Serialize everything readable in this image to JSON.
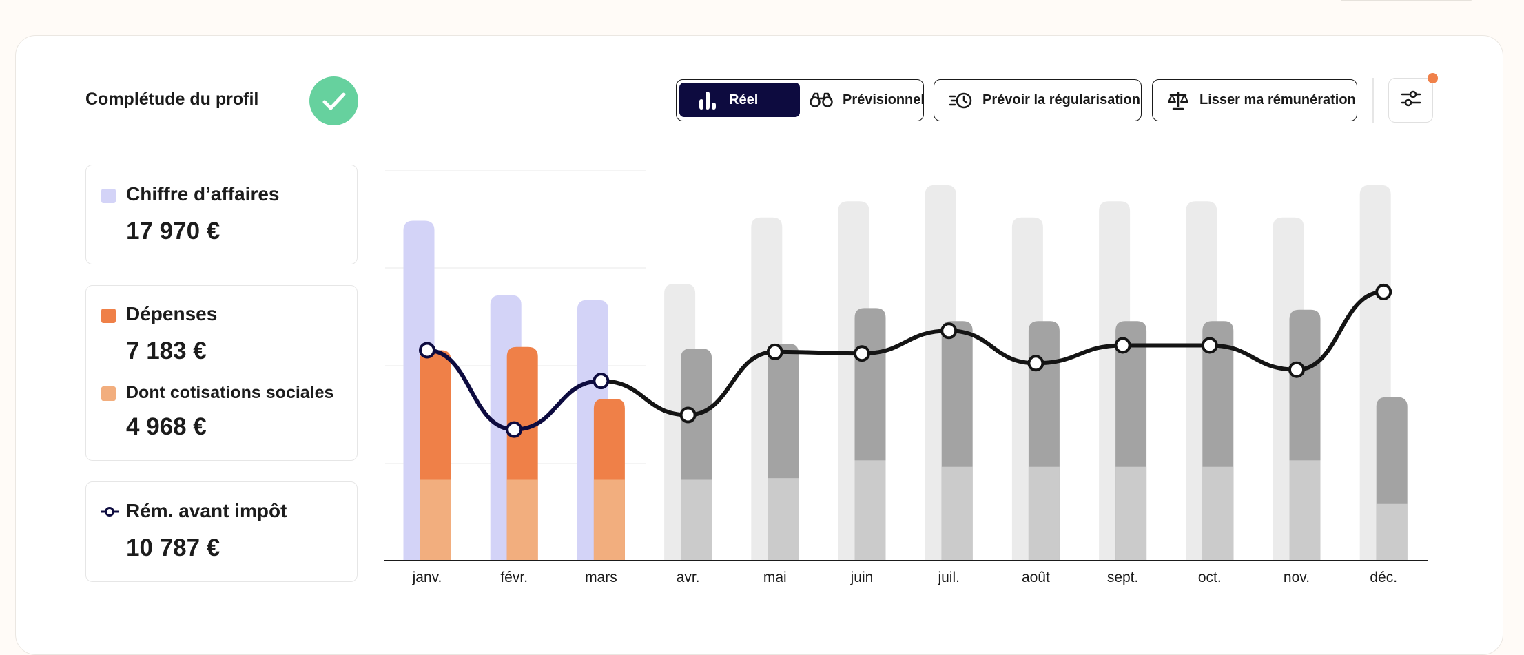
{
  "profile": {
    "title": "Complétude du profil"
  },
  "toolbar": {
    "reel_label": "Réel",
    "previsionnel_label": "Prévisionnel",
    "regularisation_label": "Prévoir la régularisation",
    "lisser_label": "Lisser ma rémunération"
  },
  "stats": {
    "chiffre_affaires": {
      "label": "Chiffre d’affaires",
      "value": "17 970 €",
      "color": "#d3d3f7"
    },
    "depenses": {
      "label": "Dépenses",
      "value": "7 183 €",
      "color": "#ef8048"
    },
    "cotisations": {
      "label": "Dont cotisations sociales",
      "value": "4 968 €",
      "color": "#f2ae7e"
    },
    "remuneration": {
      "label": "Rém. avant impôt",
      "value": "10 787 €",
      "color": "#0d0b3f"
    }
  },
  "colors": {
    "ca_actual": "#d3d3f7",
    "depenses": "#ef8048",
    "cotisations": "#f2ae7e",
    "forecast_ca": "#ebebeb",
    "forecast_dep": "#a3a3a3",
    "forecast_cot": "#cbcbcb",
    "line_actual": "#0d0b3f",
    "line_forecast": "#141414",
    "check": "#66d19e"
  },
  "chart_data": {
    "type": "bar",
    "categories": [
      "janv.",
      "févr.",
      "mars",
      "avr.",
      "mai",
      "juin",
      "juil.",
      "août",
      "sept.",
      "oct.",
      "nov.",
      "déc."
    ],
    "ylim": [
      0,
      2400
    ],
    "series": [
      {
        "name": "Chiffre d’affaires",
        "values": [
          2100,
          1640,
          1610,
          1710,
          2120,
          2220,
          2320,
          2120,
          2220,
          2220,
          2120,
          2320
        ]
      },
      {
        "name": "Dépenses",
        "values": [
          1300,
          1320,
          1000,
          1310,
          1340,
          1560,
          1480,
          1480,
          1480,
          1480,
          1550,
          1010
        ]
      },
      {
        "name": "Dont cotisations sociales",
        "values": [
          500,
          500,
          500,
          500,
          510,
          620,
          580,
          580,
          580,
          580,
          620,
          350
        ]
      },
      {
        "name": "Rém. avant impôt",
        "values": [
          1300,
          810,
          1110,
          900,
          1290,
          1280,
          1420,
          1220,
          1330,
          1330,
          1180,
          1660
        ]
      }
    ],
    "actual_months": 3
  }
}
